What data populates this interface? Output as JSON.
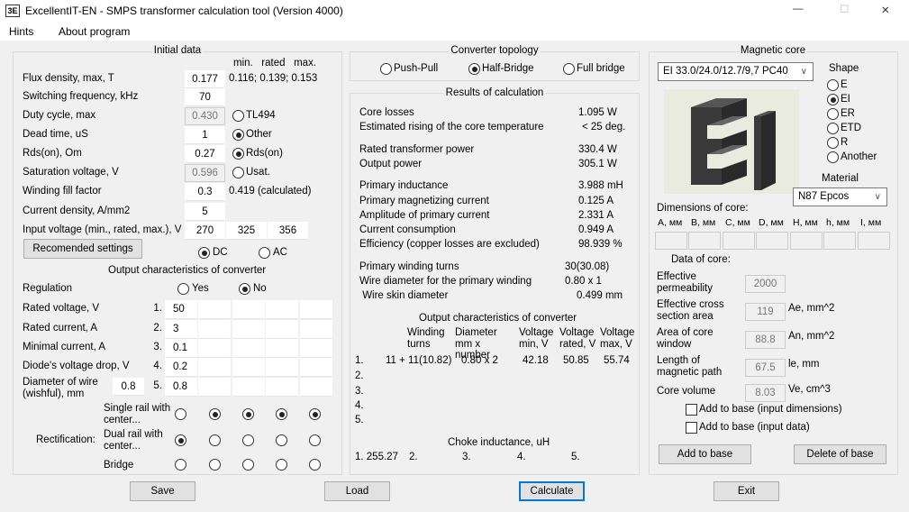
{
  "window": {
    "title": "ExcellentIT-EN - SMPS transformer calculation tool (Version 4000)",
    "icon": "3E-logo",
    "minimize": "—",
    "maximize": "☐",
    "close": "✕"
  },
  "menu": [
    "Hints",
    "About program"
  ],
  "initial": {
    "title": "Initial data",
    "hdr": "min.   rated   max.",
    "rows": [
      {
        "label": "Flux density, max, T",
        "value": "0.177",
        "extra": "0.116; 0.139; 0.153"
      },
      {
        "label": "Switching frequency, kHz",
        "value": "70"
      },
      {
        "label": "Duty cycle, max",
        "value": "0.430",
        "disabled": true,
        "radio": "TL494",
        "checked": false
      },
      {
        "label": "Dead time, uS",
        "value": "1",
        "radio": "Other",
        "checked": true
      },
      {
        "label": "Rds(on), Om",
        "value": "0.27",
        "radio": "Rds(on)",
        "checked": true
      },
      {
        "label": "Saturation voltage, V",
        "value": "0.596",
        "disabled": true,
        "radio": "Usat.",
        "checked": false
      },
      {
        "label": "Winding fill factor",
        "value": "0.3",
        "extra": "0.419 (calculated)"
      },
      {
        "label": "Current density, A/mm2",
        "value": "5"
      },
      {
        "label": "Input voltage (min., rated, max.), V",
        "value": "270",
        "value2": "325",
        "value3": "356"
      }
    ],
    "recommended": "Recomended settings",
    "dc": "DC",
    "ac": "AC",
    "input_type": "DC"
  },
  "output": {
    "title": "Output characteristics of converter",
    "regulation": "Regulation",
    "yes": "Yes",
    "no": "No",
    "regulation_value": "No",
    "rows": [
      {
        "label": "Rated voltage, V",
        "num": "1.",
        "value": "50"
      },
      {
        "label": "Rated current, A",
        "num": "2.",
        "value": "3"
      },
      {
        "label": "Minimal current, A",
        "num": "3.",
        "value": "0.1"
      },
      {
        "label": "Diode's voltage drop, V",
        "num": "4.",
        "value": "0.2"
      },
      {
        "label": "Diameter of wire (wishful), mm",
        "num": "5.",
        "value": "0.8",
        "wire": "0.8"
      }
    ],
    "rect_label": "Rectification:",
    "rect": [
      {
        "label": "Single rail with center...",
        "sel": [
          false,
          true,
          true,
          true,
          true
        ]
      },
      {
        "label": "Dual rail with center...",
        "sel": [
          true,
          false,
          false,
          false,
          false
        ]
      },
      {
        "label": "Bridge",
        "sel": [
          false,
          false,
          false,
          false,
          false
        ]
      }
    ]
  },
  "topology": {
    "title": "Converter topology",
    "options": [
      "Push-Pull",
      "Half-Bridge",
      "Full bridge"
    ],
    "selected": "Half-Bridge"
  },
  "results": {
    "title": "Results of calculation",
    "rows": [
      {
        "label": "Core losses",
        "value": "1.095 W"
      },
      {
        "label": "Estimated rising of the core temperature",
        "value": "< 25 deg."
      },
      {
        "label": "Rated transformer power",
        "value": "330.4 W"
      },
      {
        "label": "Output power",
        "value": "305.1 W"
      },
      {
        "label": "Primary inductance",
        "value": "3.988 mH"
      },
      {
        "label": "Primary magnetizing current",
        "value": "0.125 A"
      },
      {
        "label": "Amplitude of primary current",
        "value": "2.331 A"
      },
      {
        "label": "Current consumption",
        "value": "0.949 A"
      },
      {
        "label": "Efficiency (copper losses are excluded)",
        "value": "98.939 %"
      },
      {
        "label": "Primary winding turns",
        "value": "30(30.08)"
      },
      {
        "label": "Wire diameter for the primary winding",
        "value": "0.80 x 1"
      },
      {
        "label": " Wire skin diameter",
        "value": "0.499 mm"
      }
    ],
    "out_title": "Output characteristics of converter",
    "cols": [
      "Winding turns",
      "Diameter mm x number",
      "Voltage min, V",
      "Voltage rated, V",
      "Voltage max, V"
    ],
    "out_rows": [
      {
        "n": "1.",
        "turns": "11 + 11(10.82)",
        "dia": "0.80 x 2",
        "vmin": "42.18",
        "vrated": "50.85",
        "vmax": "55.74"
      },
      {
        "n": "2."
      },
      {
        "n": "3."
      },
      {
        "n": "4."
      },
      {
        "n": "5."
      }
    ],
    "choke_title": "Choke inductance, uH",
    "choke": [
      "1. 255.27",
      "2.",
      "3.",
      "4.",
      "5."
    ]
  },
  "core": {
    "title": "Magnetic core",
    "model": "EI 33.0/24.0/12.7/9,7 PC40",
    "shape_title": "Shape",
    "shapes": [
      "E",
      "EI",
      "ER",
      "ETD",
      "R",
      "Another"
    ],
    "shape": "EI",
    "material_title": "Material",
    "material": "N87 Epcos",
    "dims_title": "Dimensions of core:",
    "dims": [
      "A, мм",
      "B, мм",
      "C, мм",
      "D, мм",
      "H, мм",
      "h, мм",
      "I, мм"
    ],
    "data_title": "Data of core:",
    "data": [
      {
        "label": "Effective permeability",
        "value": "2000",
        "unit": ""
      },
      {
        "label": "Effective cross section area",
        "value": "119",
        "unit": "Ae, mm^2"
      },
      {
        "label": "Area of core window",
        "value": "88.8",
        "unit": "An, mm^2"
      },
      {
        "label": "Length of magnetic path",
        "value": "67.5",
        "unit": "le, mm"
      },
      {
        "label": "Core volume",
        "value": "8.03",
        "unit": "Ve, cm^3"
      }
    ],
    "chk1": "Add to base (input dimensions)",
    "chk2": "Add to base (input data)",
    "add": "Add to base",
    "del": "Delete of base"
  },
  "buttons": {
    "save": "Save",
    "load": "Load",
    "calculate": "Calculate",
    "exit": "Exit"
  }
}
